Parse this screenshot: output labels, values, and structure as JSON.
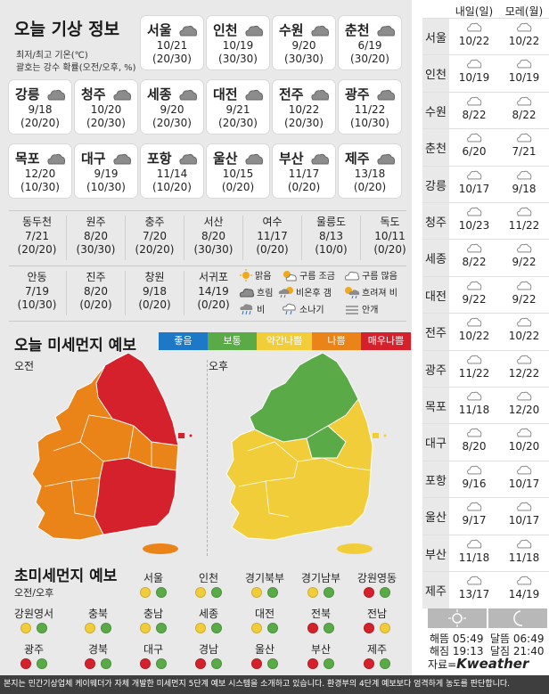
{
  "header": {
    "title": "오늘 기상 정보",
    "note1": "최저/최고 기온(℃)",
    "note2": "괄호는 강수 확률(오전/오후, %)"
  },
  "cards": [
    {
      "city": "서울",
      "temp": "10/21",
      "prob": "(20/30)"
    },
    {
      "city": "인천",
      "temp": "10/19",
      "prob": "(30/30)"
    },
    {
      "city": "수원",
      "temp": "9/20",
      "prob": "(30/30)"
    },
    {
      "city": "춘천",
      "temp": "6/19",
      "prob": "(30/20)"
    },
    {
      "city": "강릉",
      "temp": "9/18",
      "prob": "(20/20)"
    },
    {
      "city": "청주",
      "temp": "10/20",
      "prob": "(20/30)"
    },
    {
      "city": "세종",
      "temp": "9/20",
      "prob": "(20/30)"
    },
    {
      "city": "대전",
      "temp": "9/21",
      "prob": "(20/30)"
    },
    {
      "city": "전주",
      "temp": "10/22",
      "prob": "(20/30)"
    },
    {
      "city": "광주",
      "temp": "11/22",
      "prob": "(10/30)"
    },
    {
      "city": "목포",
      "temp": "12/20",
      "prob": "(10/30)"
    },
    {
      "city": "대구",
      "temp": "9/19",
      "prob": "(10/30)"
    },
    {
      "city": "포항",
      "temp": "11/14",
      "prob": "(10/20)"
    },
    {
      "city": "울산",
      "temp": "10/15",
      "prob": "(0/20)"
    },
    {
      "city": "부산",
      "temp": "11/17",
      "prob": "(0/20)"
    },
    {
      "city": "제주",
      "temp": "13/18",
      "prob": "(0/20)"
    }
  ],
  "small_row1": [
    {
      "city": "동두천",
      "temp": "7/21",
      "prob": "(20/20)"
    },
    {
      "city": "원주",
      "temp": "8/20",
      "prob": "(30/30)"
    },
    {
      "city": "충주",
      "temp": "7/20",
      "prob": "(20/20)"
    },
    {
      "city": "서산",
      "temp": "8/20",
      "prob": "(30/30)"
    },
    {
      "city": "여수",
      "temp": "11/17",
      "prob": "(0/20)"
    },
    {
      "city": "울릉도",
      "temp": "8/13",
      "prob": "(10/0)"
    },
    {
      "city": "독도",
      "temp": "10/11",
      "prob": "(0/20)"
    }
  ],
  "small_row2": [
    {
      "city": "안동",
      "temp": "7/19",
      "prob": "(10/30)"
    },
    {
      "city": "진주",
      "temp": "8/20",
      "prob": "(0/20)"
    },
    {
      "city": "창원",
      "temp": "9/18",
      "prob": "(0/20)"
    },
    {
      "city": "서귀포",
      "temp": "14/19",
      "prob": "(0/20)"
    }
  ],
  "weather_legend": {
    "sunny": "맑음",
    "few_clouds": "구름 조금",
    "cloudy": "구름 많음",
    "overcast": "흐림",
    "rain_after_clear": "비온후 갬",
    "clear_then_rain": "흐려져 비",
    "rain": "비",
    "shower": "소나기",
    "fog": "안개"
  },
  "pm": {
    "title": "오늘 미세먼지 예보",
    "am": "오전",
    "pm": "오후",
    "scale": [
      {
        "label": "좋음",
        "color": "#1d78c8"
      },
      {
        "label": "보통",
        "color": "#5aaa48"
      },
      {
        "label": "약간나쁨",
        "color": "#f2cd3a"
      },
      {
        "label": "나쁨",
        "color": "#ea8318"
      },
      {
        "label": "매우나쁨",
        "color": "#d4212c"
      }
    ]
  },
  "fine": {
    "title": "초미세먼지 예보",
    "subtitle": "오전/오후",
    "regions": [
      {
        "name": "서울",
        "am": "#f2cd3a",
        "pm": "#5aaa48"
      },
      {
        "name": "인천",
        "am": "#f2cd3a",
        "pm": "#5aaa48"
      },
      {
        "name": "경기북부",
        "am": "#f2cd3a",
        "pm": "#5aaa48"
      },
      {
        "name": "경기남부",
        "am": "#f2cd3a",
        "pm": "#5aaa48"
      },
      {
        "name": "강원영동",
        "am": "#d4212c",
        "pm": "#5aaa48"
      },
      {
        "name": "강원영서",
        "am": "#f2cd3a",
        "pm": "#5aaa48"
      },
      {
        "name": "충북",
        "am": "#f2cd3a",
        "pm": "#5aaa48"
      },
      {
        "name": "충남",
        "am": "#f2cd3a",
        "pm": "#5aaa48"
      },
      {
        "name": "세종",
        "am": "#f2cd3a",
        "pm": "#5aaa48"
      },
      {
        "name": "대전",
        "am": "#f2cd3a",
        "pm": "#5aaa48"
      },
      {
        "name": "전북",
        "am": "#d4212c",
        "pm": "#5aaa48"
      },
      {
        "name": "전남",
        "am": "#d4212c",
        "pm": "#f2cd3a"
      },
      {
        "name": "광주",
        "am": "#d4212c",
        "pm": "#5aaa48"
      },
      {
        "name": "경북",
        "am": "#d4212c",
        "pm": "#5aaa48"
      },
      {
        "name": "대구",
        "am": "#d4212c",
        "pm": "#5aaa48"
      },
      {
        "name": "경남",
        "am": "#d4212c",
        "pm": "#5aaa48"
      },
      {
        "name": "울산",
        "am": "#d4212c",
        "pm": "#5aaa48"
      },
      {
        "name": "부산",
        "am": "#d4212c",
        "pm": "#5aaa48"
      },
      {
        "name": "제주",
        "am": "#d4212c",
        "pm": "#5aaa48"
      }
    ]
  },
  "forecast": {
    "col1": "내일(일)",
    "col2": "모레(월)",
    "rows": [
      {
        "city": "서울",
        "d1": "10/22",
        "d2": "10/22"
      },
      {
        "city": "인천",
        "d1": "10/19",
        "d2": "10/19"
      },
      {
        "city": "수원",
        "d1": "8/22",
        "d2": "8/22"
      },
      {
        "city": "춘천",
        "d1": "6/20",
        "d2": "7/21"
      },
      {
        "city": "강릉",
        "d1": "10/17",
        "d2": "9/18"
      },
      {
        "city": "청주",
        "d1": "10/23",
        "d2": "11/22"
      },
      {
        "city": "세종",
        "d1": "8/22",
        "d2": "9/22"
      },
      {
        "city": "대전",
        "d1": "9/22",
        "d2": "9/22"
      },
      {
        "city": "전주",
        "d1": "10/22",
        "d2": "10/22"
      },
      {
        "city": "광주",
        "d1": "11/22",
        "d2": "12/22"
      },
      {
        "city": "목포",
        "d1": "11/18",
        "d2": "12/20"
      },
      {
        "city": "대구",
        "d1": "8/20",
        "d2": "10/20"
      },
      {
        "city": "포항",
        "d1": "9/16",
        "d2": "10/17"
      },
      {
        "city": "울산",
        "d1": "9/17",
        "d2": "10/17"
      },
      {
        "city": "부산",
        "d1": "11/18",
        "d2": "11/18"
      },
      {
        "city": "제주",
        "d1": "13/17",
        "d2": "14/19"
      }
    ]
  },
  "sun": {
    "sunrise": "해뜸 05:49",
    "sunset": "해짐 19:13",
    "moonrise": "달뜸 06:49",
    "moonset": "달짐 21:40"
  },
  "credit": {
    "prefix": "자료=",
    "brand": "Kweather"
  },
  "footer": "본지는 민간기상업체 케이웨더가 자체 개발한 미세먼지 5단계 예보 시스템을 소개하고 있습니다. 환경부의 4단계 예보보다 엄격하게 농도를 판단합니다."
}
